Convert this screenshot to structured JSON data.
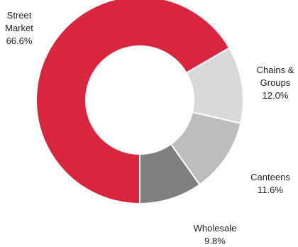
{
  "chart_data": {
    "type": "pie",
    "variant": "donut",
    "title": "",
    "legend": "none",
    "slices": [
      {
        "label_lines": [
          "Street",
          "Market"
        ],
        "value_label": "66.6%",
        "value": 66.6,
        "color": "#d7263d"
      },
      {
        "label_lines": [
          "Chains &",
          "Groups"
        ],
        "value_label": "12.0%",
        "value": 12.0,
        "color": "#d9d9d9"
      },
      {
        "label_lines": [
          "Canteens"
        ],
        "value_label": "11.6%",
        "value": 11.6,
        "color": "#bdbdbd"
      },
      {
        "label_lines": [
          "Wholesale"
        ],
        "value_label": "9.8%",
        "value": 9.8,
        "color": "#7f7f7f"
      }
    ]
  }
}
